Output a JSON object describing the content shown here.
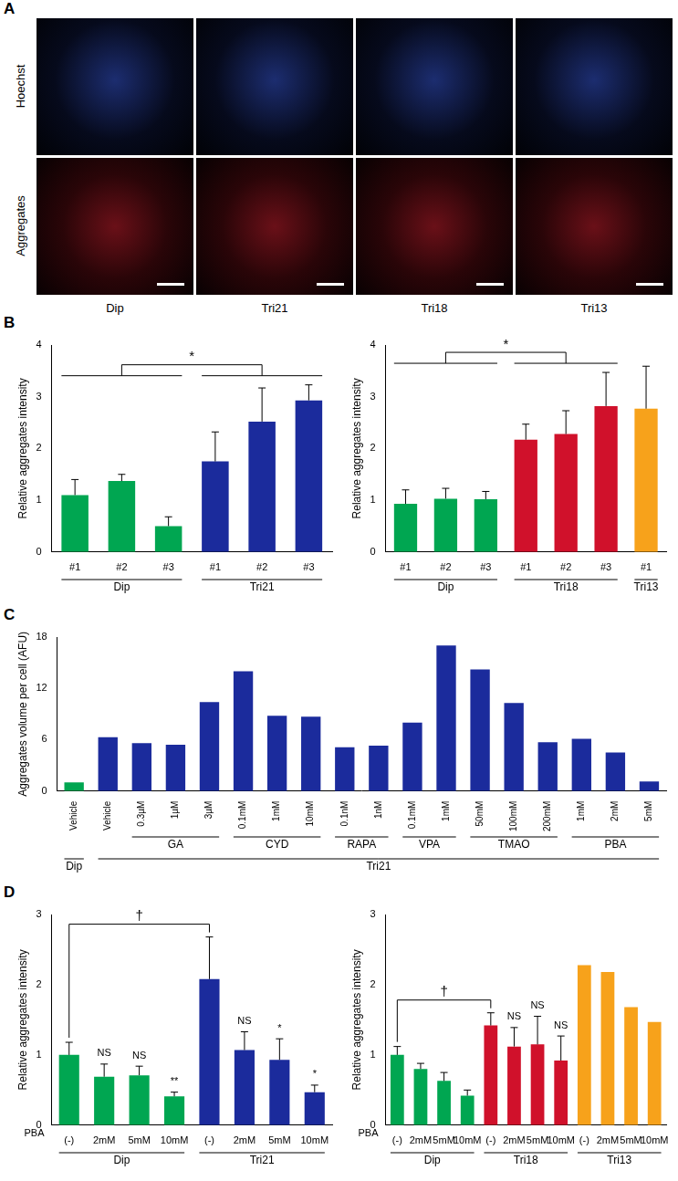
{
  "panel_labels": [
    "A",
    "B",
    "C",
    "D"
  ],
  "images": {
    "rows": [
      "Hoechst",
      "Aggregates"
    ],
    "columns": [
      "Dip",
      "Tri21",
      "Tri18",
      "Tri13"
    ]
  },
  "chart_data": [
    {
      "type": "bar",
      "y_label": "Relative aggregates intensity",
      "categories": [
        "#1",
        "#2",
        "#3",
        "#1",
        "#2",
        "#3"
      ],
      "values": [
        1.1,
        1.37,
        0.5,
        1.75,
        2.52,
        2.93
      ],
      "errors": [
        0.3,
        0.13,
        0.18,
        0.57,
        0.65,
        0.3
      ],
      "colors": [
        "#00a651",
        "#00a651",
        "#00a651",
        "#1b2b9c",
        "#1b2b9c",
        "#1b2b9c"
      ],
      "ylim": [
        0,
        4
      ],
      "yticks": [
        0,
        1,
        2,
        3,
        4
      ],
      "grid": false,
      "group_rows": [
        [
          {
            "name": "Dip",
            "first": 0,
            "count": 3
          },
          {
            "name": "Tri21",
            "first": 3,
            "count": 3
          }
        ]
      ],
      "brackets": [
        {
          "label": "*",
          "groups": [
            0,
            1
          ]
        }
      ]
    },
    {
      "type": "bar",
      "y_label": "Relative aggregates intensity",
      "categories": [
        "#1",
        "#2",
        "#3",
        "#1",
        "#2",
        "#3",
        "#1"
      ],
      "values": [
        0.93,
        1.03,
        1.02,
        2.17,
        2.28,
        2.82,
        2.77
      ],
      "errors": [
        0.27,
        0.2,
        0.15,
        0.3,
        0.45,
        0.65,
        0.82
      ],
      "colors": [
        "#00a651",
        "#00a651",
        "#00a651",
        "#d0112b",
        "#d0112b",
        "#d0112b",
        "#f7a21b"
      ],
      "ylim": [
        0,
        4
      ],
      "yticks": [
        0,
        1,
        2,
        3,
        4
      ],
      "grid": false,
      "group_rows": [
        [
          {
            "name": "Dip",
            "first": 0,
            "count": 3
          },
          {
            "name": "Tri18",
            "first": 3,
            "count": 3
          },
          {
            "name": "Tri13",
            "first": 6,
            "count": 1
          }
        ]
      ],
      "brackets": [
        {
          "label": "*",
          "groups": [
            0,
            1
          ]
        }
      ]
    },
    {
      "type": "bar",
      "y_label": "Aggregates volume per cell (AFU)",
      "categories": [
        "Vehicle",
        "Vehicle",
        "0.3µM",
        "1µM",
        "3µM",
        "0.1mM",
        "1mM",
        "10mM",
        "0.1nM",
        "1nM",
        "0.1mM",
        "1mM",
        "50mM",
        "100mM",
        "200mM",
        "1mM",
        "2mM",
        "5mM"
      ],
      "values": [
        1.0,
        6.3,
        5.6,
        5.4,
        10.4,
        14.0,
        8.8,
        8.7,
        5.1,
        5.3,
        8.0,
        17.0,
        14.2,
        10.3,
        5.7,
        6.1,
        4.5,
        1.1
      ],
      "colors": [
        "#00a651",
        "#1b2b9c",
        "#1b2b9c",
        "#1b2b9c",
        "#1b2b9c",
        "#1b2b9c",
        "#1b2b9c",
        "#1b2b9c",
        "#1b2b9c",
        "#1b2b9c",
        "#1b2b9c",
        "#1b2b9c",
        "#1b2b9c",
        "#1b2b9c",
        "#1b2b9c",
        "#1b2b9c",
        "#1b2b9c",
        "#1b2b9c"
      ],
      "ylim": [
        0,
        18
      ],
      "yticks": [
        0,
        6,
        12,
        18
      ],
      "grid": false,
      "group_rows": [
        [
          {
            "name": "GA",
            "first": 2,
            "count": 3
          },
          {
            "name": "CYD",
            "first": 5,
            "count": 3
          },
          {
            "name": "RAPA",
            "first": 8,
            "count": 2
          },
          {
            "name": "VPA",
            "first": 10,
            "count": 2
          },
          {
            "name": "TMAO",
            "first": 12,
            "count": 3
          },
          {
            "name": "PBA",
            "first": 15,
            "count": 3
          }
        ],
        [
          {
            "name": "Dip",
            "first": 0,
            "count": 1
          },
          {
            "name": "Tri21",
            "first": 1,
            "count": 17
          }
        ]
      ]
    },
    {
      "type": "bar",
      "y_label": "Relative aggregates intensity",
      "x_row_label": "PBA",
      "categories": [
        "(-)",
        "2mM",
        "5mM",
        "10mM",
        "(-)",
        "2mM",
        "5mM",
        "10mM"
      ],
      "values": [
        1.0,
        0.69,
        0.71,
        0.41,
        2.08,
        1.07,
        0.93,
        0.47
      ],
      "errors": [
        0.18,
        0.18,
        0.13,
        0.06,
        0.6,
        0.26,
        0.3,
        0.1
      ],
      "bar_notes": [
        null,
        "NS",
        "NS",
        "**",
        null,
        "NS",
        "*",
        "*"
      ],
      "colors": [
        "#00a651",
        "#00a651",
        "#00a651",
        "#00a651",
        "#1b2b9c",
        "#1b2b9c",
        "#1b2b9c",
        "#1b2b9c"
      ],
      "ylim": [
        0,
        3
      ],
      "yticks": [
        0,
        1,
        2,
        3
      ],
      "grid": false,
      "group_rows": [
        [
          {
            "name": "Dip",
            "first": 0,
            "count": 4
          },
          {
            "name": "Tri21",
            "first": 4,
            "count": 4
          }
        ]
      ],
      "brackets": [
        {
          "label": "†",
          "bars": [
            0,
            4
          ]
        }
      ]
    },
    {
      "type": "bar",
      "y_label": "Relative aggregates intensity",
      "x_row_label": "PBA",
      "categories": [
        "(-)",
        "2mM",
        "5mM",
        "10mM",
        "(-)",
        "2mM",
        "5mM",
        "10mM",
        "(-)",
        "2mM",
        "5mM",
        "10mM"
      ],
      "values": [
        1.0,
        0.8,
        0.63,
        0.42,
        1.42,
        1.12,
        1.15,
        0.92,
        2.28,
        2.18,
        1.68,
        1.47
      ],
      "errors": [
        0.12,
        0.08,
        0.12,
        0.08,
        0.18,
        0.27,
        0.4,
        0.35,
        null,
        null,
        null,
        null
      ],
      "bar_notes": [
        null,
        null,
        null,
        null,
        null,
        "NS",
        "NS",
        "NS",
        null,
        null,
        null,
        null
      ],
      "colors": [
        "#00a651",
        "#00a651",
        "#00a651",
        "#00a651",
        "#d0112b",
        "#d0112b",
        "#d0112b",
        "#d0112b",
        "#f7a21b",
        "#f7a21b",
        "#f7a21b",
        "#f7a21b"
      ],
      "ylim": [
        0,
        3
      ],
      "yticks": [
        0,
        1,
        2,
        3
      ],
      "grid": false,
      "group_rows": [
        [
          {
            "name": "Dip",
            "first": 0,
            "count": 4
          },
          {
            "name": "Tri18",
            "first": 4,
            "count": 4
          },
          {
            "name": "Tri13",
            "first": 8,
            "count": 4
          }
        ]
      ],
      "brackets": [
        {
          "label": "†",
          "bars": [
            0,
            4
          ]
        }
      ]
    }
  ]
}
